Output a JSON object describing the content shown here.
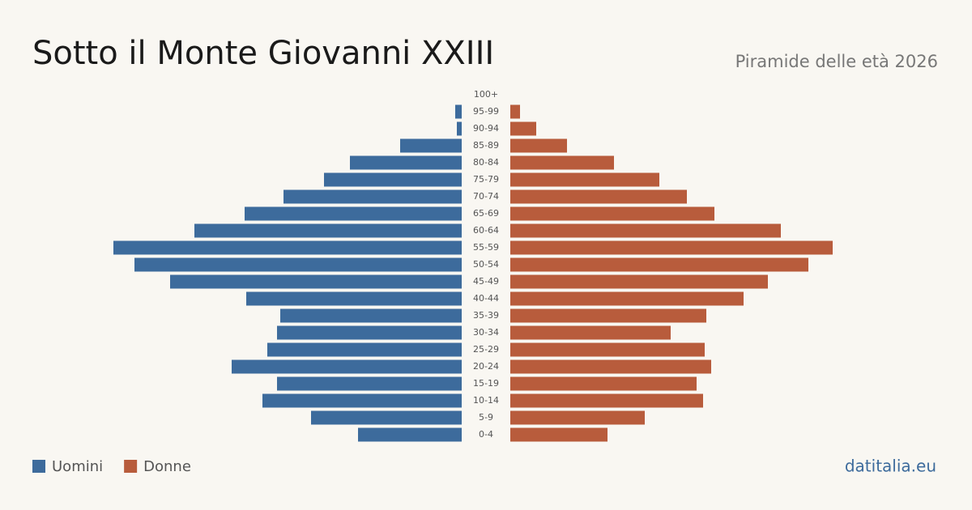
{
  "chart_data": {
    "type": "pyramid",
    "title": "Sotto il Monte Giovanni XXIII",
    "subtitle": "Piramide delle età 2026",
    "source": "datitalia.eu",
    "categories": [
      "100+",
      "95-99",
      "90-94",
      "85-89",
      "80-84",
      "75-79",
      "70-74",
      "65-69",
      "60-64",
      "55-59",
      "50-54",
      "45-49",
      "40-44",
      "35-39",
      "30-34",
      "25-29",
      "20-24",
      "15-19",
      "10-14",
      "5-9",
      "0-4"
    ],
    "series": [
      {
        "name": "Uomini",
        "color": "#3d6b9c",
        "values": [
          0,
          4,
          3,
          38,
          69,
          85,
          110,
          134,
          165,
          215,
          202,
          180,
          133,
          112,
          114,
          120,
          142,
          114,
          123,
          93,
          64
        ]
      },
      {
        "name": "Donne",
        "color": "#b85c3c",
        "values": [
          0,
          6,
          16,
          35,
          64,
          92,
          109,
          126,
          167,
          199,
          184,
          159,
          144,
          121,
          99,
          120,
          124,
          115,
          119,
          83,
          60
        ]
      }
    ]
  }
}
